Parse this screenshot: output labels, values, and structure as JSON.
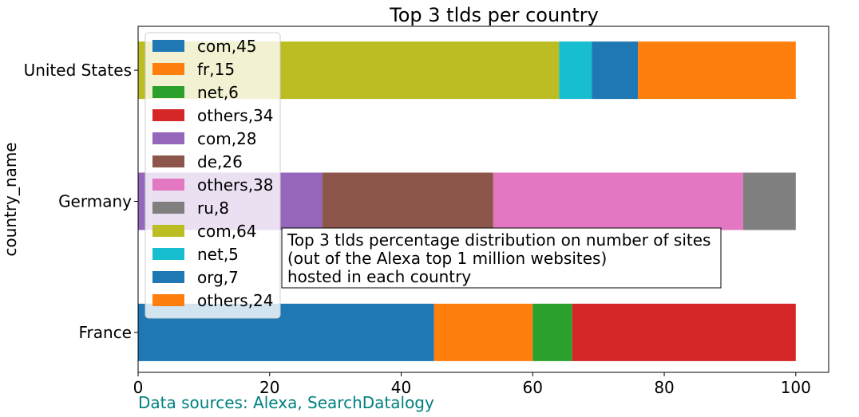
{
  "chart_data": {
    "type": "bar",
    "orientation": "horizontal",
    "stacked": true,
    "title": "Top 3 tlds per country",
    "xlabel": "",
    "ylabel": "country_name",
    "xlim": [
      0,
      105
    ],
    "xticks": [
      0,
      20,
      40,
      60,
      80,
      100
    ],
    "categories": [
      "France",
      "Germany",
      "United States"
    ],
    "series": [
      {
        "name": "com,45",
        "category": "France",
        "start": 0,
        "value": 45,
        "color": "#1f77b4"
      },
      {
        "name": "fr,15",
        "category": "France",
        "start": 45,
        "value": 15,
        "color": "#ff7f0e"
      },
      {
        "name": "net,6",
        "category": "France",
        "start": 60,
        "value": 6,
        "color": "#2ca02c"
      },
      {
        "name": "others,34",
        "category": "France",
        "start": 66,
        "value": 34,
        "color": "#d62728"
      },
      {
        "name": "com,28",
        "category": "Germany",
        "start": 0,
        "value": 28,
        "color": "#9467bd"
      },
      {
        "name": "de,26",
        "category": "Germany",
        "start": 28,
        "value": 26,
        "color": "#8c564b"
      },
      {
        "name": "others,38",
        "category": "Germany",
        "start": 54,
        "value": 38,
        "color": "#e377c2"
      },
      {
        "name": "ru,8",
        "category": "Germany",
        "start": 92,
        "value": 8,
        "color": "#7f7f7f"
      },
      {
        "name": "com,64",
        "category": "United States",
        "start": 0,
        "value": 64,
        "color": "#bcbd22"
      },
      {
        "name": "net,5",
        "category": "United States",
        "start": 64,
        "value": 5,
        "color": "#17becf"
      },
      {
        "name": "org,7",
        "category": "United States",
        "start": 69,
        "value": 7,
        "color": "#1f77b4"
      },
      {
        "name": "others,24",
        "category": "United States",
        "start": 76,
        "value": 24,
        "color": "#ff7f0e"
      }
    ],
    "legend": {
      "placement": "top-left"
    },
    "annotation": {
      "lines": [
        "Top 3 tlds percentage distribution on number of sites",
        "(out of the Alexa top 1 million websites)",
        "hosted in each country"
      ]
    },
    "grid": false
  },
  "source_note": "Data sources: Alexa, SearchDatalogy",
  "colors": {
    "source_note": "#008080",
    "axis": "#000000"
  }
}
